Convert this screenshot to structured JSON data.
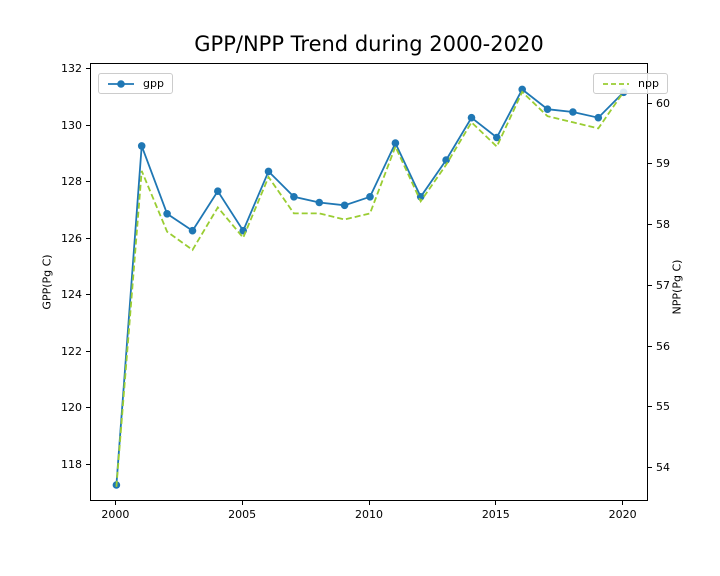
{
  "chart_data": {
    "type": "line",
    "title": "GPP/NPP Trend during 2000-2020",
    "x": [
      2000,
      2001,
      2002,
      2003,
      2004,
      2005,
      2006,
      2007,
      2008,
      2009,
      2010,
      2011,
      2012,
      2013,
      2014,
      2015,
      2016,
      2017,
      2018,
      2019,
      2020
    ],
    "series": [
      {
        "name": "gpp",
        "axis": "left",
        "color": "#1f77b4",
        "line_style": "solid",
        "marker": "circle",
        "values": [
          117.3,
          129.3,
          126.9,
          126.3,
          127.7,
          126.3,
          128.4,
          127.5,
          127.3,
          127.2,
          127.5,
          129.4,
          127.5,
          128.8,
          130.3,
          129.6,
          131.3,
          130.6,
          130.5,
          130.3,
          131.2
        ]
      },
      {
        "name": "npp",
        "axis": "right",
        "color": "#9acd32",
        "line_style": "dashed",
        "marker": "none",
        "values": [
          53.7,
          58.9,
          57.9,
          57.6,
          58.3,
          57.8,
          58.8,
          58.2,
          58.2,
          58.1,
          58.2,
          59.3,
          58.4,
          59.0,
          59.7,
          59.3,
          60.2,
          59.8,
          59.7,
          59.6,
          60.2
        ]
      }
    ],
    "x_axis": {
      "ticks": [
        2000,
        2005,
        2010,
        2015,
        2020
      ],
      "range": [
        1999,
        2021
      ]
    },
    "left_axis": {
      "label": "GPP(Pg C)",
      "ticks": [
        118,
        120,
        122,
        124,
        126,
        128,
        130,
        132
      ],
      "range": [
        116.7,
        132.2
      ]
    },
    "right_axis": {
      "label": "NPP(Pg C)",
      "ticks": [
        54,
        55,
        56,
        57,
        58,
        59,
        60
      ],
      "range": [
        53.45,
        60.66
      ]
    },
    "legend": {
      "entries": [
        "gpp",
        "npp"
      ],
      "positions": [
        "upper-left",
        "upper-right"
      ]
    },
    "grid": false
  }
}
